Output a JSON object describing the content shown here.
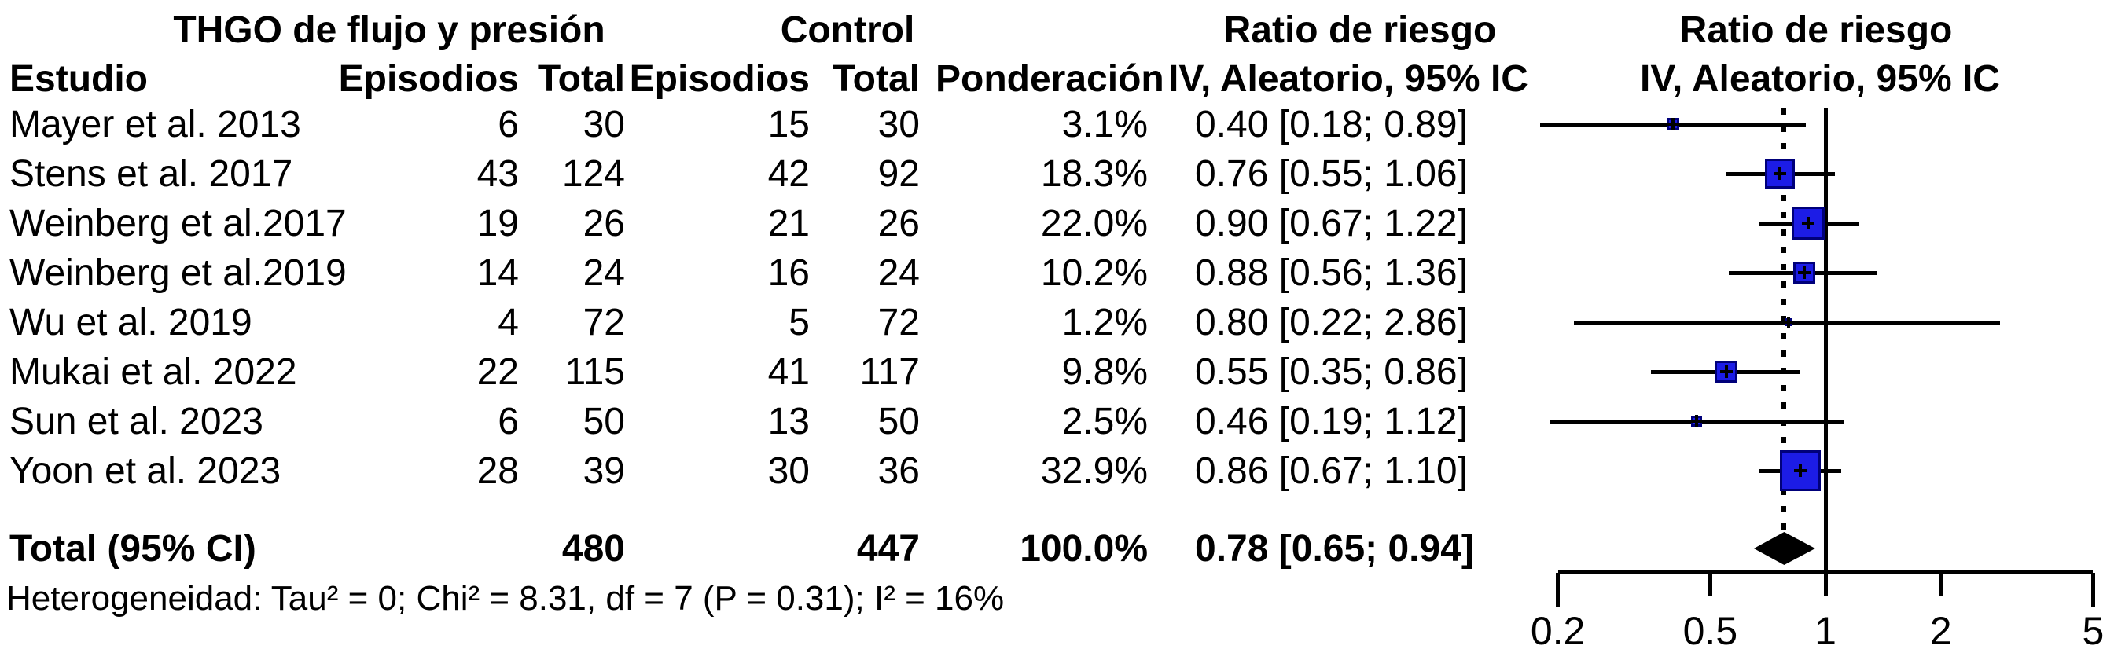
{
  "headers": {
    "group_treatment": "THGO de flujo y presión",
    "group_control": "Control",
    "group_ratio_text": "Ratio de riesgo",
    "group_ratio_plot": "Ratio de riesgo",
    "col_study": "Estudio",
    "col_events_treatment": "Episodios",
    "col_total_treatment": "Total",
    "col_events_control": "Episodios",
    "col_total_control": "Total",
    "col_weight": "Ponderación",
    "col_ci_text": "IV, Aleatorio, 95% IC",
    "col_ci_plot": "IV, Aleatorio, 95% IC"
  },
  "colors": {
    "marker_fill": "#1c1ce6",
    "marker_border": "#00007a",
    "line": "#000000",
    "diamond": "#000000"
  },
  "chart_data": {
    "type": "forest",
    "x_scale": "log",
    "x_ticks": [
      0.2,
      0.5,
      1,
      2,
      5
    ],
    "x_axis_range": [
      0.2,
      5
    ],
    "null_line": 1,
    "pooled_dotted_line": 0.78,
    "studies": [
      {
        "label": "Mayer et al. 2013",
        "events_exp": "6",
        "total_exp": "30",
        "events_ctrl": "15",
        "total_ctrl": "30",
        "weight_pct": 3.1,
        "weight_label": "3.1%",
        "rr": 0.4,
        "ci_low": 0.18,
        "ci_high": 0.89,
        "ratio_label": "0.40 [0.18; 0.89]"
      },
      {
        "label": "Stens et al. 2017",
        "events_exp": "43",
        "total_exp": "124",
        "events_ctrl": "42",
        "total_ctrl": "92",
        "weight_pct": 18.3,
        "weight_label": "18.3%",
        "rr": 0.76,
        "ci_low": 0.55,
        "ci_high": 1.06,
        "ratio_label": "0.76 [0.55; 1.06]"
      },
      {
        "label": "Weinberg et al.2017",
        "events_exp": "19",
        "total_exp": "26",
        "events_ctrl": "21",
        "total_ctrl": "26",
        "weight_pct": 22.0,
        "weight_label": "22.0%",
        "rr": 0.9,
        "ci_low": 0.67,
        "ci_high": 1.22,
        "ratio_label": "0.90 [0.67; 1.22]"
      },
      {
        "label": "Weinberg et al.2019",
        "events_exp": "14",
        "total_exp": "24",
        "events_ctrl": "16",
        "total_ctrl": "24",
        "weight_pct": 10.2,
        "weight_label": "10.2%",
        "rr": 0.88,
        "ci_low": 0.56,
        "ci_high": 1.36,
        "ratio_label": "0.88 [0.56; 1.36]"
      },
      {
        "label": "Wu et al. 2019",
        "events_exp": "4",
        "total_exp": "72",
        "events_ctrl": "5",
        "total_ctrl": "72",
        "weight_pct": 1.2,
        "weight_label": "1.2%",
        "rr": 0.8,
        "ci_low": 0.22,
        "ci_high": 2.86,
        "ratio_label": "0.80 [0.22; 2.86]"
      },
      {
        "label": "Mukai et al. 2022",
        "events_exp": "22",
        "total_exp": "115",
        "events_ctrl": "41",
        "total_ctrl": "117",
        "weight_pct": 9.8,
        "weight_label": "9.8%",
        "rr": 0.55,
        "ci_low": 0.35,
        "ci_high": 0.86,
        "ratio_label": "0.55 [0.35; 0.86]"
      },
      {
        "label": "Sun et al. 2023",
        "events_exp": "6",
        "total_exp": "50",
        "events_ctrl": "13",
        "total_ctrl": "50",
        "weight_pct": 2.5,
        "weight_label": "2.5%",
        "rr": 0.46,
        "ci_low": 0.19,
        "ci_high": 1.12,
        "ratio_label": "0.46 [0.19; 1.12]"
      },
      {
        "label": "Yoon et al. 2023",
        "events_exp": "28",
        "total_exp": "39",
        "events_ctrl": "30",
        "total_ctrl": "36",
        "weight_pct": 32.9,
        "weight_label": "32.9%",
        "rr": 0.86,
        "ci_low": 0.67,
        "ci_high": 1.1,
        "ratio_label": "0.86 [0.67; 1.10]"
      }
    ],
    "total": {
      "label": "Total (95% CI)",
      "total_exp": "480",
      "total_ctrl": "447",
      "weight_label": "100.0%",
      "rr": 0.78,
      "ci_low": 0.65,
      "ci_high": 0.94,
      "ratio_label": "0.78 [0.65; 0.94]"
    },
    "heterogeneity": "Heterogeneidad: Tau² = 0; Chi² = 8.31, df = 7 (P = 0.31); I² = 16%",
    "tick_labels": [
      "0.2",
      "0.5",
      "1",
      "2",
      "5"
    ]
  }
}
